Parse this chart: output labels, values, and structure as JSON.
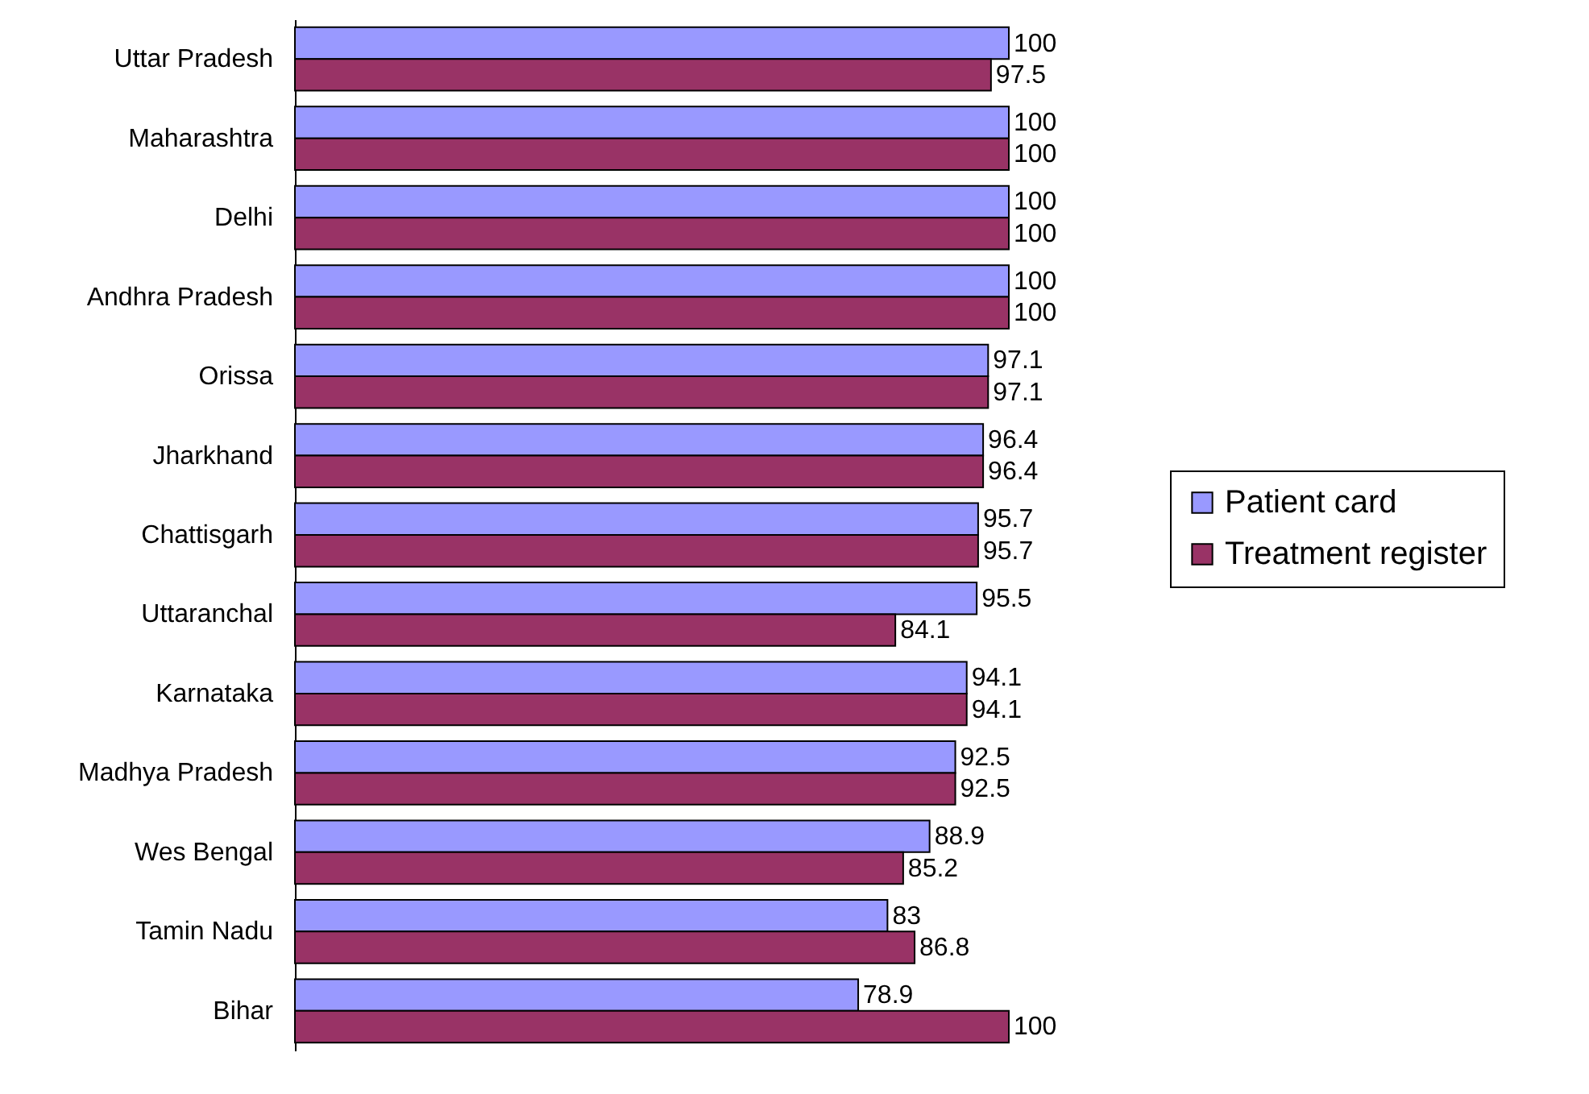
{
  "chart_data": {
    "type": "bar",
    "orientation": "horizontal",
    "categories": [
      "Uttar Pradesh",
      "Maharashtra",
      "Delhi",
      "Andhra Pradesh",
      "Orissa",
      "Jharkhand",
      "Chattisgarh",
      "Uttaranchal",
      "Karnataka",
      "Madhya Pradesh",
      "Wes Bengal",
      "Tamin Nadu",
      "Bihar"
    ],
    "series": [
      {
        "name": "Patient card",
        "color": "#9999ff",
        "values": [
          100,
          100,
          100,
          100,
          97.1,
          96.4,
          95.7,
          95.5,
          94.1,
          92.5,
          88.9,
          83,
          78.9
        ]
      },
      {
        "name": "Treatment register",
        "color": "#993366",
        "values": [
          97.5,
          100,
          100,
          100,
          97.1,
          96.4,
          95.7,
          84.1,
          94.1,
          92.5,
          85.2,
          86.8,
          100
        ]
      }
    ],
    "data_labels": true,
    "legend": "right"
  }
}
